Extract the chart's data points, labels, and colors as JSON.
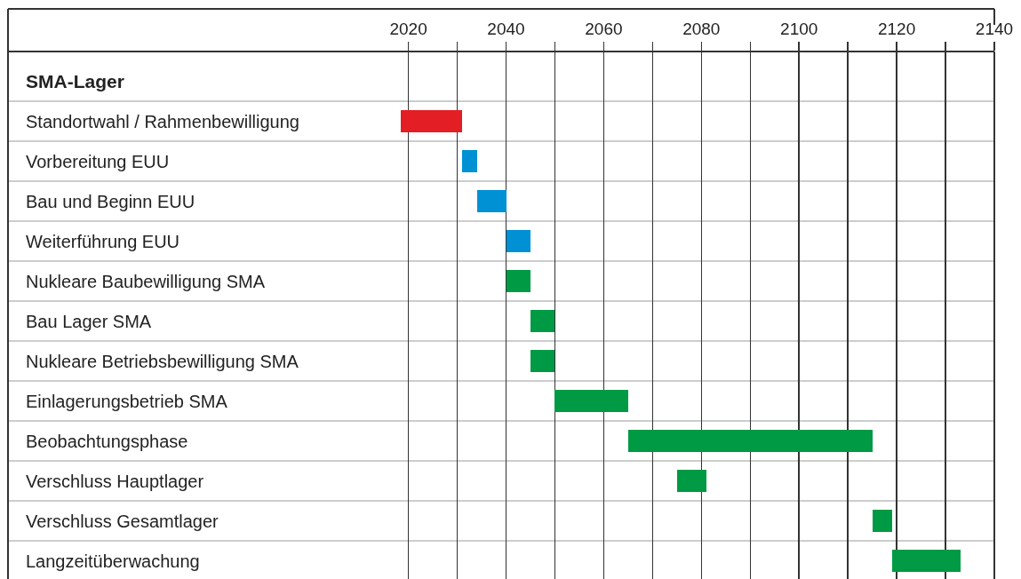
{
  "chart_data": {
    "type": "bar",
    "orientation": "horizontal",
    "categories": [
      "SMA-Lager",
      "Standortwahl / Rahmenbewilligung",
      "Vorbereitung EUU",
      "Bau und Beginn EUU",
      "Weiterführung EUU",
      "Nukleare Baubewilligung SMA",
      "Bau Lager SMA",
      "Nukleare Betriebsbewilligung SMA",
      "Einlagerungsbetrieb SMA",
      "Beobachtungsphase",
      "Verschluss Hauptlager",
      "Verschluss Gesamtlager",
      "Langzeitüberwachung"
    ],
    "base": [
      null,
      2018.5,
      2031,
      2034,
      2040,
      2040,
      2045,
      2045,
      2050,
      2065,
      2075,
      2115,
      2119
    ],
    "values": [
      null,
      12.5,
      3,
      6,
      5,
      5,
      5,
      5,
      15,
      50,
      6,
      4,
      14
    ],
    "colors": [
      "#009a44",
      "#e31e24",
      "#0090d4",
      "#0090d4",
      "#0090d4",
      "#009a44",
      "#009a44",
      "#009a44",
      "#009a44",
      "#009a44",
      "#009a44",
      "#009a44",
      "#009a44"
    ],
    "xlim": [
      1938,
      2140
    ],
    "xticks": [
      2020,
      {
        "value": 2030,
        "label": null
      },
      2040,
      {
        "value": 2050,
        "label": null
      },
      2060,
      {
        "value": 2070,
        "label": null
      },
      2080,
      {
        "value": 2090,
        "label": null
      },
      2100,
      {
        "value": 2110,
        "label": null
      },
      2120,
      {
        "value": 2130,
        "label": null
      },
      2140
    ],
    "grid": true
  }
}
